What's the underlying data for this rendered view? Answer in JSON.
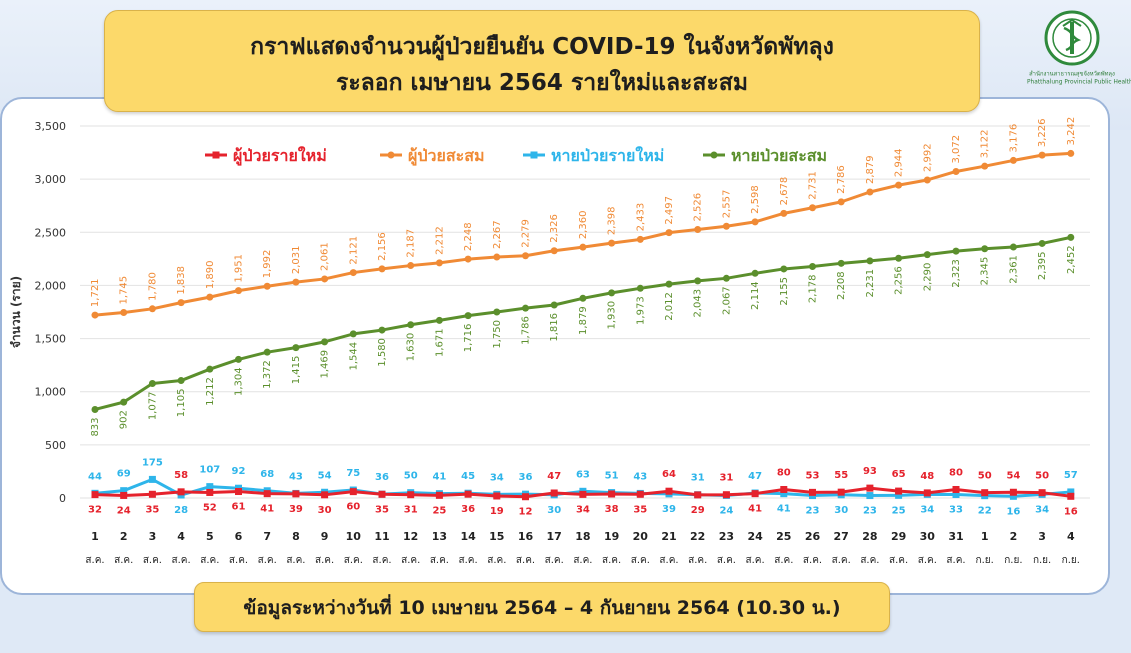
{
  "header": {
    "title_line1": "กราฟแสดงจำนวนผู้ป่วยยืนยัน COVID-19 ในจังหวัดพัทลุง",
    "title_line2": "ระลอก เมษายน 2564 รายใหม่และสะสม"
  },
  "logo": {
    "line1": "สำนักงานสาธารณสุขจังหวัดพัทลุง",
    "line2": "Phatthalung Provincial Public Health Office",
    "ring_text": "MINISTRY OF PUBLIC HEALTH"
  },
  "footer": {
    "text": "ข้อมูลระหว่างวันที่ 10 เมษายน 2564 – 4 กันยายน 2564 (10.30 น.)"
  },
  "colors": {
    "new_cases": "#e5222c",
    "cumulative_cases": "#f08a35",
    "new_recovered": "#2eb5ea",
    "cumulative_recovered": "#5b8f2c"
  },
  "chart_data": {
    "type": "line",
    "ylabel": "จำนวน (ราย)",
    "ylim": [
      0,
      3500
    ],
    "yticks": [
      "0",
      "500",
      "1,000",
      "1,500",
      "2,000",
      "2,500",
      "3,000",
      "3,500"
    ],
    "grid": true,
    "legend_position": "top-center",
    "x_days": [
      "1",
      "2",
      "3",
      "4",
      "5",
      "6",
      "7",
      "8",
      "9",
      "10",
      "11",
      "12",
      "13",
      "14",
      "15",
      "16",
      "17",
      "18",
      "19",
      "20",
      "21",
      "22",
      "23",
      "24",
      "25",
      "26",
      "27",
      "28",
      "29",
      "30",
      "31",
      "1",
      "2",
      "3",
      "4"
    ],
    "x_months": [
      "ส.ค.",
      "ส.ค.",
      "ส.ค.",
      "ส.ค.",
      "ส.ค.",
      "ส.ค.",
      "ส.ค.",
      "ส.ค.",
      "ส.ค.",
      "ส.ค.",
      "ส.ค.",
      "ส.ค.",
      "ส.ค.",
      "ส.ค.",
      "ส.ค.",
      "ส.ค.",
      "ส.ค.",
      "ส.ค.",
      "ส.ค.",
      "ส.ค.",
      "ส.ค.",
      "ส.ค.",
      "ส.ค.",
      "ส.ค.",
      "ส.ค.",
      "ส.ค.",
      "ส.ค.",
      "ส.ค.",
      "ส.ค.",
      "ส.ค.",
      "ส.ค.",
      "ก.ย.",
      "ก.ย.",
      "ก.ย.",
      "ก.ย."
    ],
    "series": [
      {
        "name": "ผู้ป่วยรายใหม่",
        "color": "#e5222c",
        "label_pos": "below",
        "values": [
          32,
          24,
          35,
          58,
          52,
          61,
          41,
          39,
          30,
          60,
          35,
          31,
          25,
          36,
          19,
          12,
          47,
          34,
          38,
          35,
          64,
          29,
          31,
          41,
          80,
          53,
          55,
          93,
          65,
          48,
          80,
          50,
          54,
          50,
          16
        ],
        "label_sides": [
          "below",
          "below",
          "below",
          "above",
          "below",
          "below",
          "below",
          "below",
          "below",
          "below",
          "below",
          "below",
          "below",
          "below",
          "below",
          "below",
          "above",
          "below",
          "below",
          "below",
          "above",
          "below",
          "above",
          "below",
          "above",
          "above",
          "above",
          "above",
          "above",
          "above",
          "above",
          "above",
          "above",
          "above",
          "below"
        ]
      },
      {
        "name": "ผู้ป่วยสะสม",
        "color": "#f08a35",
        "label_pos": "above-rotated",
        "values": [
          1721,
          1745,
          1780,
          1838,
          1890,
          1951,
          1992,
          2031,
          2061,
          2121,
          2156,
          2187,
          2212,
          2248,
          2267,
          2279,
          2326,
          2360,
          2398,
          2433,
          2497,
          2526,
          2557,
          2598,
          2678,
          2731,
          2786,
          2879,
          2944,
          2992,
          3072,
          3122,
          3176,
          3226,
          3242
        ],
        "labels": [
          "1,721",
          "1,745",
          "1,780",
          "1,838",
          "1,890",
          "1,951",
          "1,992",
          "2,031",
          "2,061",
          "2,121",
          "2,156",
          "2,187",
          "2,212",
          "2,248",
          "2,267",
          "2,279",
          "2,326",
          "2,360",
          "2,398",
          "2,433",
          "2,497",
          "2,526",
          "2,557",
          "2,598",
          "2,678",
          "2,731",
          "2,786",
          "2,879",
          "2,944",
          "2,992",
          "3,072",
          "3,122",
          "3,176",
          "3,226",
          "3,242"
        ]
      },
      {
        "name": "หายป่วยรายใหม่",
        "color": "#2eb5ea",
        "label_pos": "above",
        "values": [
          44,
          69,
          175,
          28,
          107,
          92,
          68,
          43,
          54,
          75,
          36,
          50,
          41,
          45,
          34,
          36,
          30,
          63,
          51,
          43,
          39,
          31,
          24,
          47,
          41,
          23,
          30,
          23,
          25,
          34,
          33,
          22,
          16,
          34,
          57
        ],
        "label_sides": [
          "above",
          "above",
          "above",
          "below",
          "above",
          "above",
          "above",
          "above",
          "above",
          "above",
          "above",
          "above",
          "above",
          "above",
          "above",
          "above",
          "below",
          "above",
          "above",
          "above",
          "below",
          "above",
          "below",
          "above",
          "below",
          "below",
          "below",
          "below",
          "below",
          "below",
          "below",
          "below",
          "below",
          "below",
          "above"
        ]
      },
      {
        "name": "หายป่วยสะสม",
        "color": "#5b8f2c",
        "label_pos": "below-rotated",
        "values": [
          833,
          902,
          1077,
          1105,
          1212,
          1304,
          1372,
          1415,
          1469,
          1544,
          1580,
          1630,
          1671,
          1716,
          1750,
          1786,
          1816,
          1879,
          1930,
          1973,
          2012,
          2043,
          2067,
          2114,
          2155,
          2178,
          2208,
          2231,
          2256,
          2290,
          2323,
          2345,
          2361,
          2395,
          2452
        ],
        "labels": [
          "833",
          "902",
          "1,077",
          "1,105",
          "1,212",
          "1,304",
          "1,372",
          "1,415",
          "1,469",
          "1,544",
          "1,580",
          "1,630",
          "1,671",
          "1,716",
          "1,750",
          "1,786",
          "1,816",
          "1,879",
          "1,930",
          "1,973",
          "2,012",
          "2,043",
          "2,067",
          "2,114",
          "2,155",
          "2,178",
          "2,208",
          "2,231",
          "2,256",
          "2,290",
          "2,323",
          "2,345",
          "2,361",
          "2,395",
          "2,452"
        ]
      }
    ]
  }
}
